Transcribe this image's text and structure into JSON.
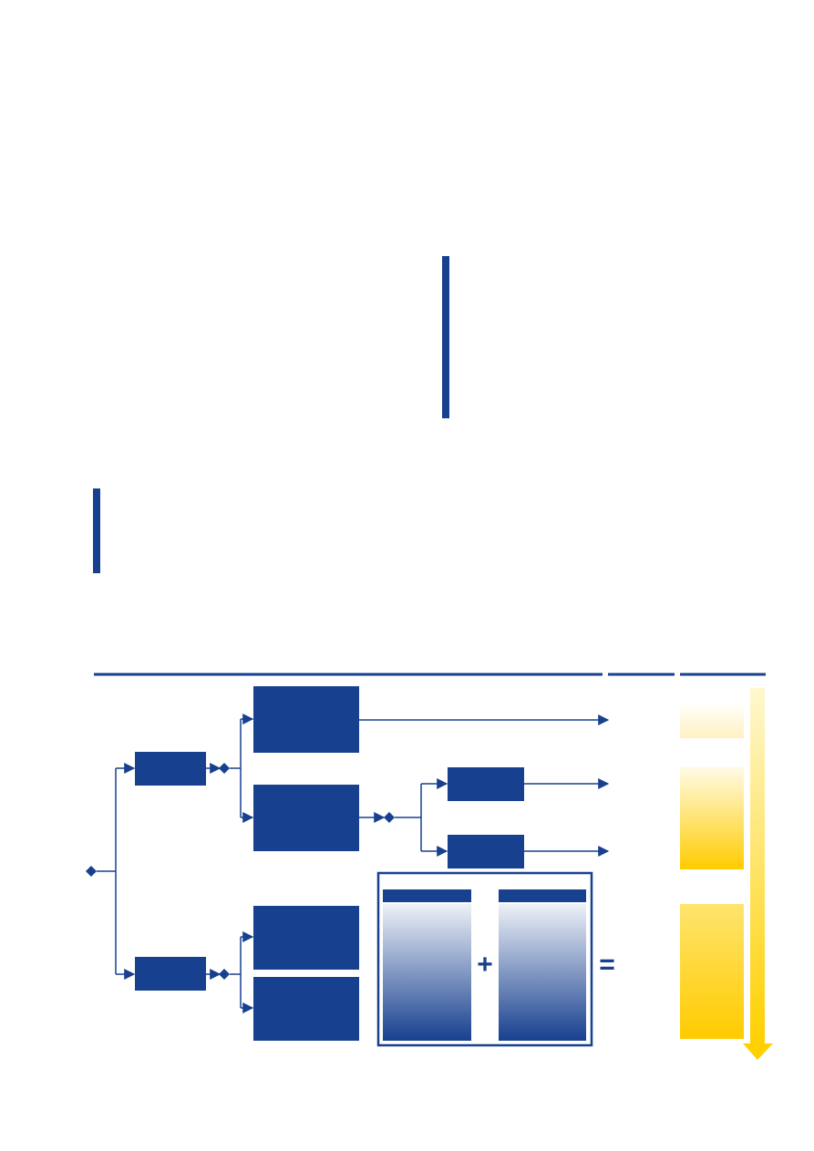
{
  "colors": {
    "primary_blue": "#17408f",
    "gradient_light": "#e8ecf4",
    "yellow_light": "#fff8dc",
    "yellow_mid": "#ffe27a",
    "yellow_strong": "#ffcc00",
    "arrow_yellow": "#ffd21f"
  },
  "diagram": {
    "symbols": {
      "plus": "+",
      "equals": "="
    },
    "icons": {
      "decision_marker": "diamond-icon",
      "flow_arrow": "arrowhead-icon",
      "scale_arrow": "down-arrow-icon"
    }
  }
}
